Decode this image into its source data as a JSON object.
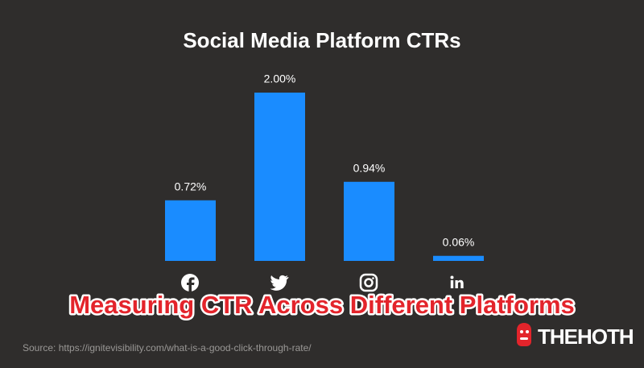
{
  "chart_data": {
    "type": "bar",
    "title": "Social Media Platform CTRs",
    "categories": [
      null,
      null,
      null,
      null
    ],
    "values": [
      0.72,
      2.0,
      0.94,
      0.06
    ],
    "value_labels": [
      "0.72%",
      "2.00%",
      "0.94%",
      "0.06%"
    ],
    "color": "#1a8cff"
  },
  "overlay": {
    "headline": "Measuring CTR Across Different Platforms",
    "source": "Source: https://ignitevisibility.com/what-is-a-good-click-through-rate/",
    "logo": "THEHOTH"
  }
}
